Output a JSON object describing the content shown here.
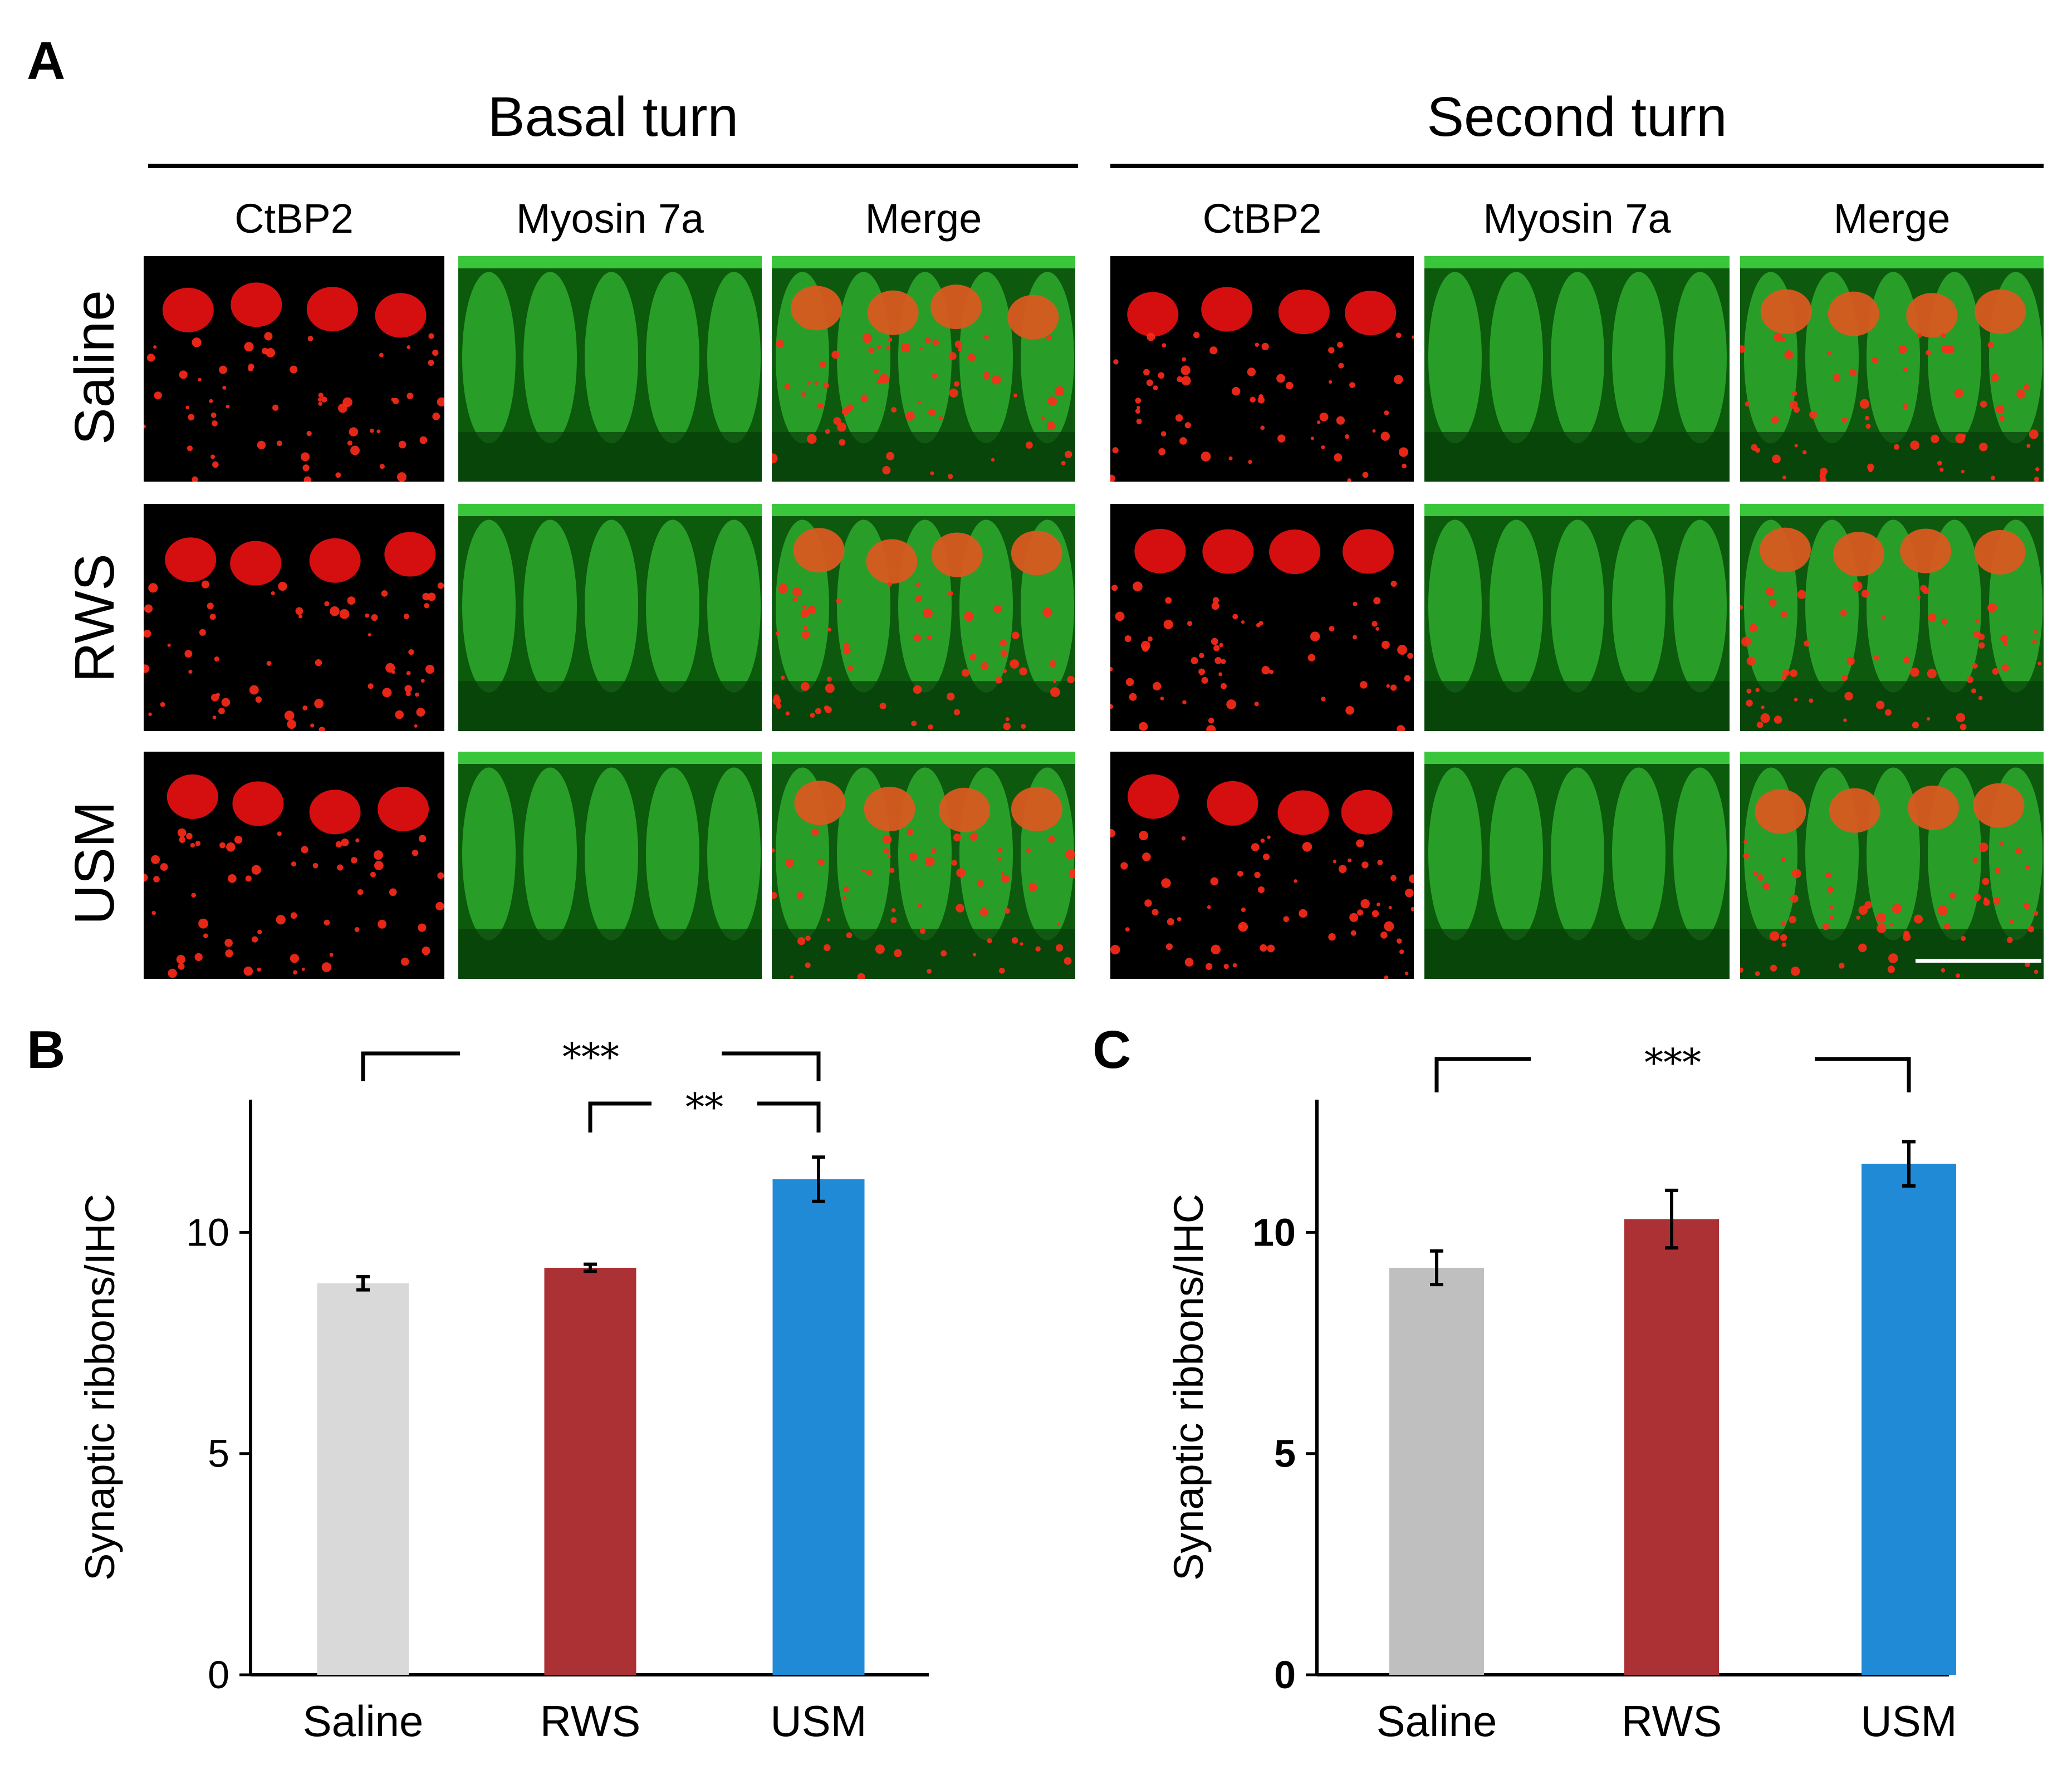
{
  "panel_a": {
    "letter": "A",
    "turns": [
      {
        "title": "Basal turn",
        "columns": [
          "CtBP2",
          "Myosin 7a",
          "Merge"
        ]
      },
      {
        "title": "Second turn",
        "columns": [
          "CtBP2",
          "Myosin 7a",
          "Merge"
        ]
      }
    ],
    "rows": [
      "Saline",
      "RWS",
      "USM"
    ],
    "tile_types": [
      "red-ribbon-stain",
      "green-myosin-stain",
      "merged-stain"
    ]
  },
  "panel_b": {
    "letter": "B"
  },
  "panel_c": {
    "letter": "C"
  },
  "chart_data": [
    {
      "type": "bar",
      "categories": [
        "Saline",
        "RWS",
        "USM"
      ],
      "values": [
        8.85,
        9.2,
        11.2
      ],
      "errors": [
        0.15,
        0.08,
        0.5
      ],
      "colors": [
        "#d9d9d9",
        "#ab3134",
        "#218ad7"
      ],
      "ylabel": "Synaptic ribbons/IHC",
      "ylim": [
        0,
        13
      ],
      "yticks": [
        0,
        5,
        10
      ],
      "grid": false,
      "significance": [
        {
          "from": "Saline",
          "to": "USM",
          "label": "***"
        },
        {
          "from": "RWS",
          "to": "USM",
          "label": "**"
        }
      ]
    },
    {
      "type": "bar",
      "categories": [
        "Saline",
        "RWS",
        "USM"
      ],
      "values": [
        9.2,
        10.3,
        11.55
      ],
      "errors": [
        0.38,
        0.65,
        0.5
      ],
      "colors": [
        "#bfbfbf",
        "#ab3134",
        "#218ad7"
      ],
      "ylabel": "Synaptic ribbons/IHC",
      "ylim": [
        0,
        13
      ],
      "yticks": [
        0,
        5,
        10
      ],
      "grid": false,
      "significance": [
        {
          "from": "Saline",
          "to": "USM",
          "label": "***"
        }
      ]
    }
  ]
}
